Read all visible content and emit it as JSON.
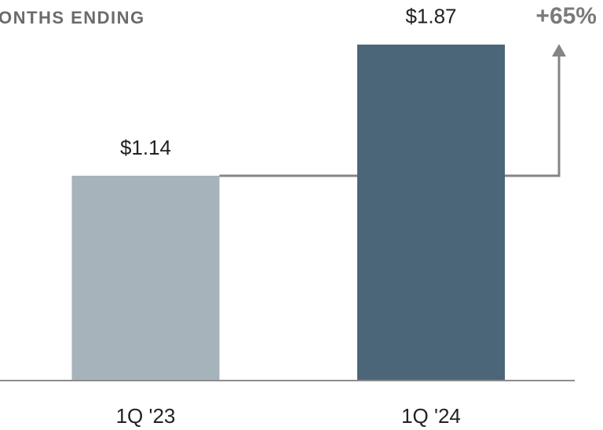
{
  "chart_data": {
    "type": "bar",
    "title": "ONTHS ENDING",
    "annotation": "+65%",
    "categories": [
      "1Q '23",
      "1Q '24"
    ],
    "values": [
      1.14,
      1.87
    ],
    "value_labels": [
      "$1.14",
      "$1.87"
    ],
    "colors": [
      "#a6b3bb",
      "#4a6678"
    ],
    "ylim": [
      0,
      2
    ]
  }
}
